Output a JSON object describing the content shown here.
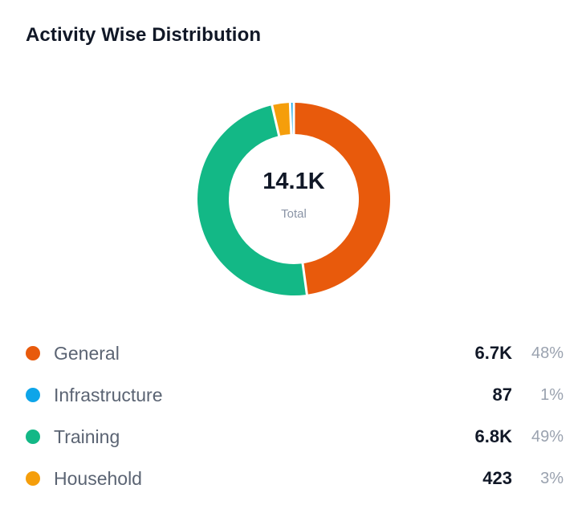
{
  "title": "Activity Wise Distribution",
  "center": {
    "value": "14.1K",
    "label": "Total"
  },
  "chart_data": {
    "type": "pie",
    "title": "Activity Wise Distribution",
    "total_label": "14.1K",
    "categories": [
      "General",
      "Infrastructure",
      "Training",
      "Household"
    ],
    "values": [
      6700,
      87,
      6800,
      423
    ],
    "percentages": [
      48,
      1,
      49,
      3
    ],
    "colors": [
      "#e85a0c",
      "#0ea5e9",
      "#13b886",
      "#f59e0b"
    ],
    "donut": true,
    "legend_position": "bottom"
  },
  "legend": [
    {
      "name": "General",
      "value": "6.7K",
      "pct": "48%",
      "color": "#e85a0c"
    },
    {
      "name": "Infrastructure",
      "value": "87",
      "pct": "1%",
      "color": "#0ea5e9"
    },
    {
      "name": "Training",
      "value": "6.8K",
      "pct": "49%",
      "color": "#13b886"
    },
    {
      "name": "Household",
      "value": "423",
      "pct": "3%",
      "color": "#f59e0b"
    }
  ]
}
